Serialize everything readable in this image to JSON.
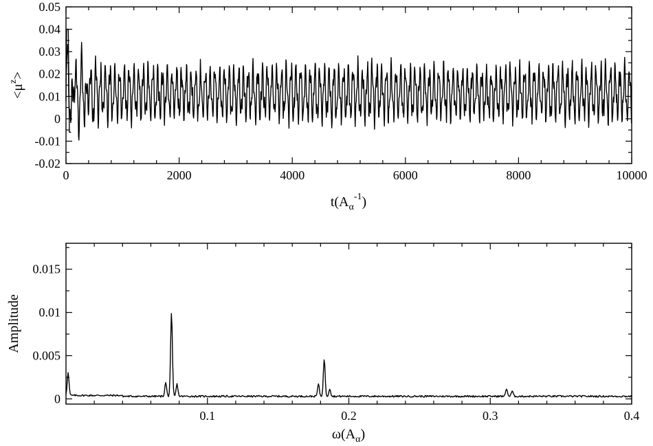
{
  "chart_data": [
    {
      "type": "line",
      "xlabel_parts": {
        "base": "t(A",
        "sub": "α",
        "sup": "-1",
        "close": ")"
      },
      "ylabel_parts": {
        "open": "<μ",
        "sup": "z",
        "close": ">"
      },
      "xlim": [
        0,
        10000
      ],
      "ylim": [
        -0.02,
        0.05
      ],
      "xticks": [
        0,
        2000,
        4000,
        6000,
        8000,
        10000
      ],
      "xtick_labels": [
        "0",
        "2000",
        "4000",
        "6000",
        "8000",
        "10000"
      ],
      "yticks": [
        -0.02,
        -0.01,
        0,
        0.01,
        0.02,
        0.03,
        0.04,
        0.05
      ],
      "ytick_labels": [
        "-0.02",
        "-0.01",
        "0",
        "0.01",
        "0.02",
        "0.03",
        "0.04",
        "0.05"
      ],
      "minor_per_major_x": 4,
      "minor_per_major_y": 1,
      "grid": false,
      "signal": {
        "mean": 0.0115,
        "component_frequencies": [
          0.0746,
          0.1826,
          0.3115
        ],
        "component_amplitudes": [
          0.0095,
          0.0043,
          0.0009
        ],
        "envelope_amplitude": 0.0025,
        "envelope_period": 5000,
        "sample_step": 6,
        "initial_transient": {
          "t_end": 700,
          "max": 0.041,
          "min": -0.014
        }
      },
      "series": [
        {
          "style": "black solid line"
        }
      ]
    },
    {
      "type": "line",
      "xlabel_parts": {
        "base": "ω(A",
        "sub": "α",
        "close": ")"
      },
      "ylabel": "Amplitude",
      "xlim": [
        0,
        0.4
      ],
      "ylim": [
        -0.0006,
        0.018
      ],
      "xticks": [
        0.1,
        0.2,
        0.3,
        0.4
      ],
      "xtick_labels": [
        "0.1",
        "0.2",
        "0.3",
        "0.4"
      ],
      "yticks": [
        0,
        0.005,
        0.01,
        0.015
      ],
      "ytick_labels": [
        "0",
        "0.005",
        "0.01",
        "0.015"
      ],
      "minor_per_major_x": 4,
      "minor_per_major_y": 1,
      "grid": false,
      "peaks": [
        {
          "x": 0.0015,
          "y": 0.0026
        },
        {
          "x": 0.0705,
          "y": 0.0016
        },
        {
          "x": 0.0746,
          "y": 0.0096
        },
        {
          "x": 0.0785,
          "y": 0.0014
        },
        {
          "x": 0.1785,
          "y": 0.0014
        },
        {
          "x": 0.1826,
          "y": 0.0043
        },
        {
          "x": 0.1865,
          "y": 0.0009
        },
        {
          "x": 0.3115,
          "y": 0.0009
        },
        {
          "x": 0.3155,
          "y": 0.0006
        }
      ],
      "baseline": 0.0002,
      "series": [
        {
          "style": "black solid line"
        }
      ]
    }
  ]
}
